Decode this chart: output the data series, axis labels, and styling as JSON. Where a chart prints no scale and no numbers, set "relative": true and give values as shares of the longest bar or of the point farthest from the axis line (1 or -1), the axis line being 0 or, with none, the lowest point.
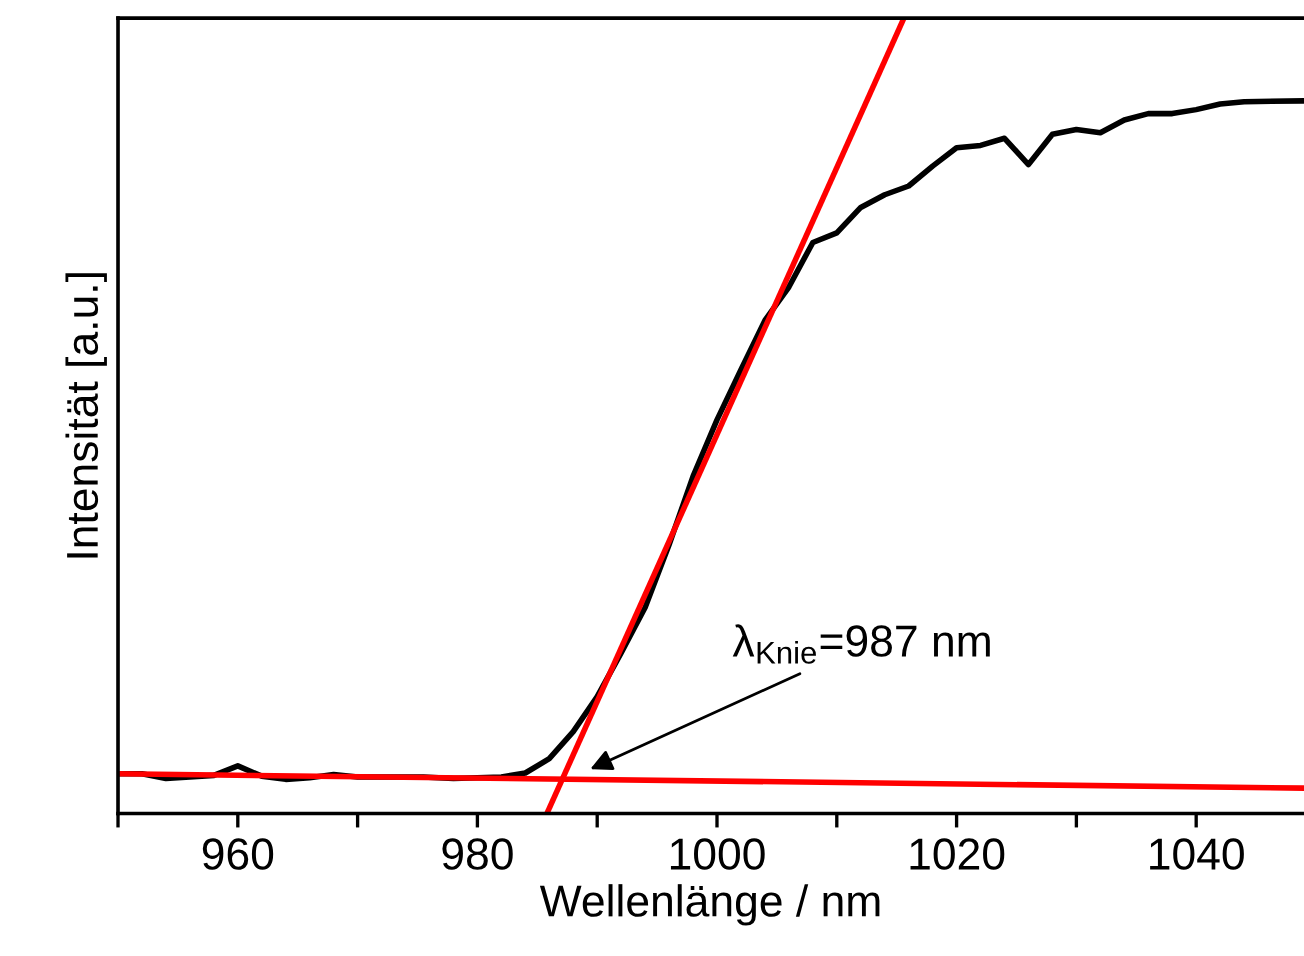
{
  "chart_data": {
    "type": "line",
    "relative": true,
    "xlabel": "Wellenlänge / nm",
    "ylabel": "Intensität [a.u.]",
    "xlim": [
      950,
      1049
    ],
    "xticks": [
      {
        "value": 950,
        "label": null
      },
      960,
      {
        "value": 970,
        "label": null
      },
      980,
      {
        "value": 990,
        "label": null
      },
      1000,
      {
        "value": 1010,
        "label": null
      },
      1020,
      {
        "value": 1030,
        "label": null
      },
      1040
    ],
    "series": [
      {
        "color": "#000000",
        "x": [
          950,
          952,
          954,
          958,
          960,
          962,
          964,
          966,
          968,
          970,
          975.5,
          978,
          982,
          984,
          986,
          988,
          990,
          992,
          994,
          996,
          998,
          1000,
          1002,
          1004,
          1006,
          1008,
          1010,
          1012,
          1014,
          1016,
          1018,
          1020,
          1022,
          1024,
          1026,
          1028,
          1030,
          1032,
          1034,
          1036,
          1038,
          1040,
          1042,
          1044,
          1048.8
        ],
        "values": [
          0.05,
          0.05,
          0.044,
          0.048,
          0.06,
          0.047,
          0.043,
          0.045,
          0.049,
          0.046,
          0.046,
          0.044,
          0.046,
          0.051,
          0.069,
          0.103,
          0.147,
          0.202,
          0.259,
          0.338,
          0.424,
          0.495,
          0.558,
          0.62,
          0.662,
          0.718,
          0.73,
          0.762,
          0.778,
          0.789,
          0.814,
          0.837,
          0.84,
          0.849,
          0.816,
          0.854,
          0.86,
          0.856,
          0.872,
          0.88,
          0.88,
          0.885,
          0.892,
          0.895,
          0.896
        ]
      },
      {
        "color": "#ff0000",
        "x": [
          985.8,
          1015.6
        ],
        "values": [
          0,
          1
        ]
      },
      {
        "color": "#ff0000",
        "x": [
          950,
          1048.8
        ],
        "values": [
          0.05,
          0.032
        ]
      }
    ],
    "annotations": [
      {
        "text": "λ$_{Knie}$=987 nm",
        "x": 989,
        "y": 0.053
      }
    ],
    "marker": "none",
    "line_style": "solid"
  }
}
